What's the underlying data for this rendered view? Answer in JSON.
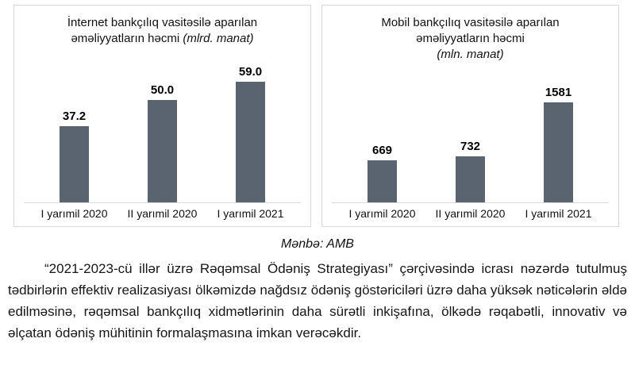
{
  "source_note": "Mənbə: AMB",
  "paragraph": "“2021-2023-cü illər üzrə Rəqəmsal Ödəniş Strategiyası” çərçivəsində icrası nəzərdə tutulmuş tədbirlərin effektiv realizasiyası ölkəmizdə nağdsız ödəniş göstəriciləri üzrə daha yüksək nəticələrin əldə edilməsinə, rəqəmsal bankçılıq xidmətlərinin daha sürətli inkişafına, ölkədə rəqabətli, innovativ və əlçatan ödəniş mühitinin formalaşmasına imkan verəcəkdir.",
  "chart_data": [
    {
      "type": "bar",
      "title": "İnternet bankçılıq vasitəsilə aparılan əməliyyatların həcmi (mlrd. manat)",
      "title_main": "İnternet bankçılıq vasitəsilə aparılan əməliyyatların həcmi",
      "title_unit": "(mlrd. manat)",
      "unit": "mlrd. manat",
      "categories": [
        "I yarımil 2020",
        "II yarımil 2020",
        "I yarımil 2021"
      ],
      "values": [
        37.2,
        50.0,
        59.0
      ],
      "value_labels": [
        "37.2",
        "50.0",
        "59.0"
      ],
      "bar_color": "#5a6471",
      "ylim": [
        0,
        65
      ],
      "grid": false,
      "legend_position": "none"
    },
    {
      "type": "bar",
      "title": "Mobil bankçılıq vasitəsilə aparılan əməliyyatların həcmi (mln. manat)",
      "title_main": "Mobil bankçılıq vasitəsilə aparılan əməliyyatların həcmi",
      "title_unit": "(mln. manat)",
      "unit": "mln. manat",
      "categories": [
        "I yarımil 2020",
        "II yarımil 2020",
        "I yarımil 2021"
      ],
      "values": [
        669,
        732,
        1581
      ],
      "value_labels": [
        "669",
        "732",
        "1581"
      ],
      "bar_color": "#5a6471",
      "ylim": [
        0,
        1740
      ],
      "grid": false,
      "legend_position": "none"
    }
  ]
}
